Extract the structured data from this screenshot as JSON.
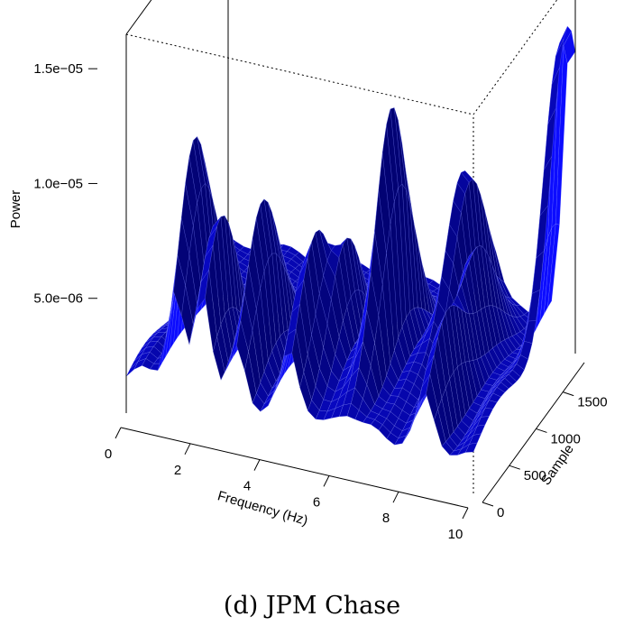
{
  "caption": "(d) JPM Chase",
  "chart_data": {
    "type": "surface3d",
    "xlabel": "Frequency (Hz)",
    "ylabel": "Sample",
    "zlabel": "Power",
    "xlim": [
      0,
      10
    ],
    "ylim": [
      0,
      1900
    ],
    "zlim": [
      0,
      1.65e-05
    ],
    "x_ticks": [
      0,
      2,
      4,
      6,
      8,
      10
    ],
    "x_tick_labels": [
      "0",
      "2",
      "4",
      "6",
      "8",
      "10"
    ],
    "y_ticks": [
      0,
      500,
      1000,
      1500
    ],
    "y_tick_labels": [
      "0",
      "500",
      "1000",
      "1500"
    ],
    "z_ticks": [
      5e-06,
      1e-05,
      1.5e-05
    ],
    "z_tick_labels": [
      "5.0e−06",
      "1.0e−05",
      "1.5e−05"
    ],
    "surface_color": "#1a1acc",
    "peaks": [
      {
        "frequency": 1.4,
        "sample": 380,
        "power": 1.15e-05
      },
      {
        "frequency": 2.2,
        "sample": 300,
        "power": 8.6e-06
      },
      {
        "frequency": 3.2,
        "sample": 450,
        "power": 8.4e-06
      },
      {
        "frequency": 4.7,
        "sample": 420,
        "power": 7.8e-06
      },
      {
        "frequency": 5.2,
        "sample": 700,
        "power": 7e-06
      },
      {
        "frequency": 6.4,
        "sample": 820,
        "power": 1.35e-05
      },
      {
        "frequency": 7.6,
        "sample": 1400,
        "power": 9.8e-06
      },
      {
        "frequency": 8.3,
        "sample": 1100,
        "power": 6.8e-06
      },
      {
        "frequency": 9.9,
        "sample": 1750,
        "power": 1.6e-05
      },
      {
        "frequency": 8.6,
        "sample": 400,
        "power": 5.8e-06
      }
    ],
    "base_power": 1.8e-06,
    "grid": false,
    "legend": "none"
  }
}
